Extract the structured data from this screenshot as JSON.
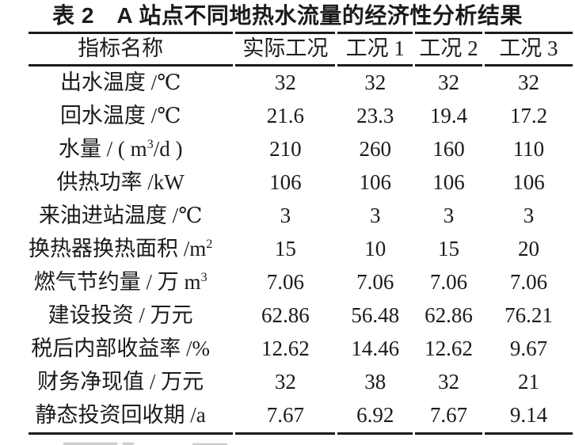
{
  "title": "表 2　A 站点不同地热水流量的经济性分析结果",
  "table": {
    "header": [
      "指标名称",
      "实际工况",
      "工况 1",
      "工况 2",
      "工况 3"
    ],
    "rows": [
      {
        "pre": "出水温度 /℃",
        "sup": "",
        "post": "",
        "values": [
          "32",
          "32",
          "32",
          "32"
        ]
      },
      {
        "pre": "回水温度 /℃",
        "sup": "",
        "post": "",
        "values": [
          "21.6",
          "23.3",
          "19.4",
          "17.2"
        ]
      },
      {
        "pre": "水量 / ( m",
        "sup": "3",
        "post": "/d )",
        "values": [
          "210",
          "260",
          "160",
          "110"
        ]
      },
      {
        "pre": "供热功率 /kW",
        "sup": "",
        "post": "",
        "values": [
          "106",
          "106",
          "106",
          "106"
        ]
      },
      {
        "pre": "来油进站温度 /℃",
        "sup": "",
        "post": "",
        "values": [
          "3",
          "3",
          "3",
          "3"
        ]
      },
      {
        "pre": "换热器换热面积 /m",
        "sup": "2",
        "post": "",
        "values": [
          "15",
          "10",
          "15",
          "20"
        ]
      },
      {
        "pre": "燃气节约量 / 万 m",
        "sup": "3",
        "post": "",
        "values": [
          "7.06",
          "7.06",
          "7.06",
          "7.06"
        ]
      },
      {
        "pre": "建设投资 / 万元",
        "sup": "",
        "post": "",
        "values": [
          "62.86",
          "56.48",
          "62.86",
          "76.21"
        ]
      },
      {
        "pre": "税后内部收益率 /%",
        "sup": "",
        "post": "",
        "values": [
          "12.62",
          "14.46",
          "12.62",
          "9.67"
        ]
      },
      {
        "pre": "财务净现值 / 万元",
        "sup": "",
        "post": "",
        "values": [
          "32",
          "38",
          "32",
          "21"
        ]
      },
      {
        "pre": "静态投资回收期 /a",
        "sup": "",
        "post": "",
        "values": [
          "7.67",
          "6.92",
          "7.67",
          "9.14"
        ]
      }
    ]
  }
}
